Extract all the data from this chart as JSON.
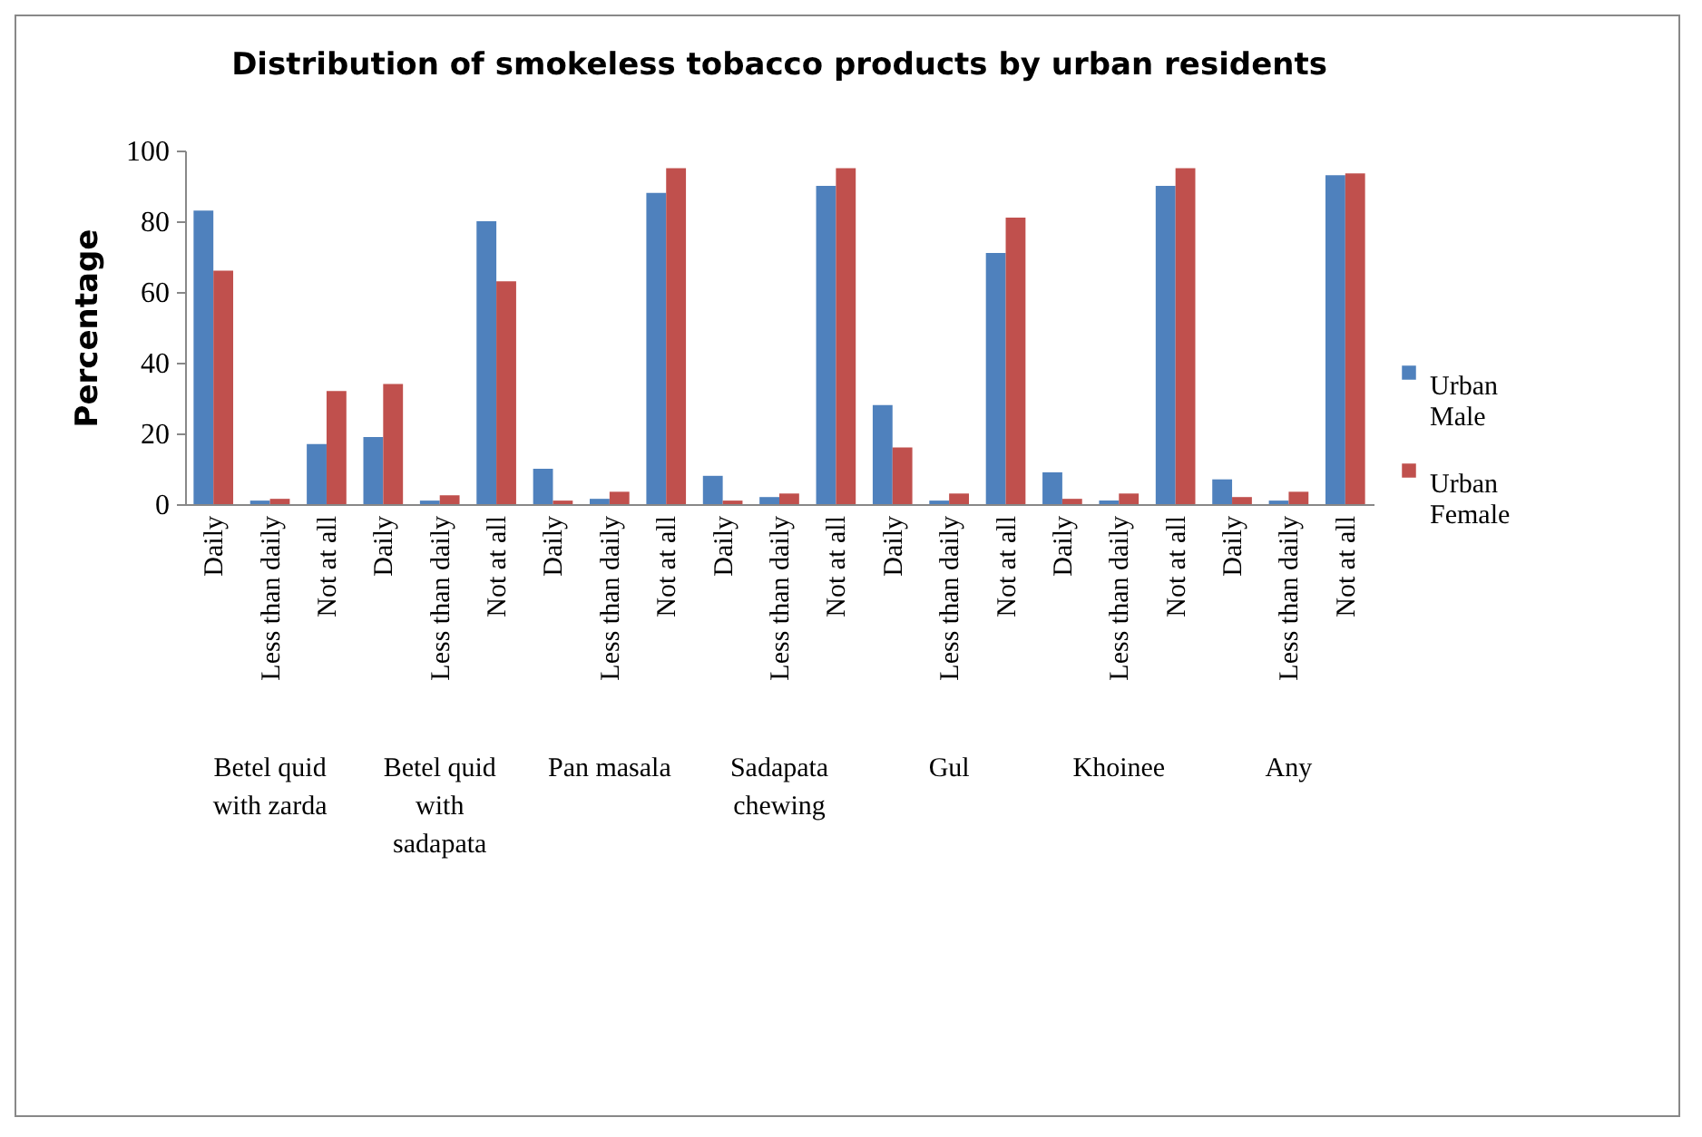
{
  "chart_data": {
    "type": "bar",
    "title": "Distribution of smokeless tobacco products by urban residents",
    "ylabel": "Percentage",
    "categories": [
      "Daily",
      "Less than daily",
      "Not at all",
      "Daily",
      "Less than daily",
      "Not at all",
      "Daily",
      "Less than daily",
      "Not at all",
      "Daily",
      "Less than daily",
      "Not at all",
      "Daily",
      "Less than daily",
      "Not at all",
      "Daily",
      "Less than daily",
      "Not at all",
      "Daily",
      "Less than daily",
      "Not at all"
    ],
    "series": [
      {
        "name": "Urban Male",
        "color": "#4f81bd",
        "values": [
          83,
          1,
          17,
          19,
          1,
          80,
          10,
          1.5,
          88,
          8,
          2,
          90,
          28,
          1,
          71,
          9,
          1,
          90,
          7,
          1,
          93
        ]
      },
      {
        "name": "Urban Female",
        "color": "#c0504d",
        "values": [
          66,
          1.5,
          32,
          34,
          2.5,
          63,
          1,
          3.5,
          95,
          1,
          3,
          95,
          16,
          3,
          81,
          1.5,
          3,
          95,
          2,
          3.5,
          93.5
        ]
      }
    ],
    "annotations": [
      "Betel quid with zarda",
      "Betel quid with sadapata",
      "Pan masala",
      "Sadapata chewing",
      "Gul",
      "Khoinee",
      "Any"
    ],
    "ylim": [
      0,
      100
    ],
    "yticks": [
      0,
      20,
      40,
      60,
      80,
      100
    ],
    "grid": false,
    "legend": "right"
  }
}
